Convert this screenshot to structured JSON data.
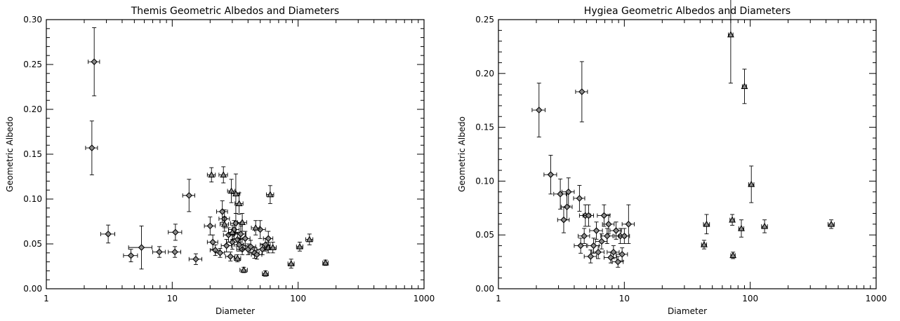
{
  "chart_data": [
    {
      "type": "scatter",
      "title": "Themis Geometric Albedos and Diameters",
      "xlabel": "Diameter",
      "ylabel": "Geometric Albedo",
      "xscale": "log",
      "xlim": [
        1,
        1000
      ],
      "ylim": [
        0,
        0.3
      ],
      "xticks": [
        1,
        10,
        100,
        1000
      ],
      "xtick_labels": [
        "1",
        "10",
        "100",
        "1000"
      ],
      "yticks": [
        0,
        0.05,
        0.1,
        0.15,
        0.2,
        0.25,
        0.3
      ],
      "ytick_labels": [
        "0.00",
        "0.05",
        "0.10",
        "0.15",
        "0.20",
        "0.25",
        "0.30"
      ],
      "grid": false,
      "series": [
        {
          "marker": "diamond",
          "points": [
            {
              "x": 2.4,
              "y": 0.253,
              "xerr": 0.25,
              "yerr": 0.038
            },
            {
              "x": 2.3,
              "y": 0.157,
              "xerr": 0.25,
              "yerr": 0.03
            },
            {
              "x": 3.1,
              "y": 0.061,
              "xerr": 0.4,
              "yerr": 0.01
            },
            {
              "x": 4.7,
              "y": 0.037,
              "xerr": 0.6,
              "yerr": 0.007
            },
            {
              "x": 5.7,
              "y": 0.046,
              "xerr": 1.2,
              "yerr": 0.024
            },
            {
              "x": 7.9,
              "y": 0.041,
              "xerr": 0.9,
              "yerr": 0.006
            },
            {
              "x": 10.5,
              "y": 0.041,
              "xerr": 1.2,
              "yerr": 0.006
            },
            {
              "x": 10.6,
              "y": 0.063,
              "xerr": 1.3,
              "yerr": 0.009
            },
            {
              "x": 13.6,
              "y": 0.104,
              "xerr": 1.5,
              "yerr": 0.018
            },
            {
              "x": 15.4,
              "y": 0.033,
              "xerr": 1.8,
              "yerr": 0.006
            },
            {
              "x": 20.0,
              "y": 0.07,
              "xerr": 2.0,
              "yerr": 0.01
            },
            {
              "x": 21.0,
              "y": 0.052,
              "xerr": 2.0,
              "yerr": 0.008
            },
            {
              "x": 22.0,
              "y": 0.043,
              "xerr": 2.0,
              "yerr": 0.006
            },
            {
              "x": 24.0,
              "y": 0.04,
              "xerr": 2.0,
              "yerr": 0.005
            },
            {
              "x": 25.0,
              "y": 0.086,
              "xerr": 2.5,
              "yerr": 0.012
            },
            {
              "x": 26.0,
              "y": 0.078,
              "xerr": 2.5,
              "yerr": 0.01
            },
            {
              "x": 27.0,
              "y": 0.048,
              "xerr": 2.5,
              "yerr": 0.007
            },
            {
              "x": 28.0,
              "y": 0.06,
              "xerr": 2.5,
              "yerr": 0.008
            },
            {
              "x": 29.0,
              "y": 0.036,
              "xerr": 2.5,
              "yerr": 0.005
            },
            {
              "x": 30.0,
              "y": 0.052,
              "xerr": 3.0,
              "yerr": 0.008
            },
            {
              "x": 31.0,
              "y": 0.066,
              "xerr": 3.0,
              "yerr": 0.01
            },
            {
              "x": 32.0,
              "y": 0.073,
              "xerr": 3.0,
              "yerr": 0.011
            },
            {
              "x": 33.0,
              "y": 0.055,
              "xerr": 3.0,
              "yerr": 0.008
            },
            {
              "x": 34.0,
              "y": 0.049,
              "xerr": 3.0,
              "yerr": 0.007
            },
            {
              "x": 35.0,
              "y": 0.061,
              "xerr": 3.5,
              "yerr": 0.009
            },
            {
              "x": 36.0,
              "y": 0.044,
              "xerr": 3.5,
              "yerr": 0.006
            },
            {
              "x": 38.0,
              "y": 0.056,
              "xerr": 3.5,
              "yerr": 0.008
            },
            {
              "x": 40.0,
              "y": 0.044,
              "xerr": 4.0,
              "yerr": 0.006
            },
            {
              "x": 42.0,
              "y": 0.047,
              "xerr": 4.0,
              "yerr": 0.007
            },
            {
              "x": 45.0,
              "y": 0.04,
              "xerr": 4.0,
              "yerr": 0.006
            },
            {
              "x": 47.0,
              "y": 0.038,
              "xerr": 4.5,
              "yerr": 0.005
            },
            {
              "x": 50.0,
              "y": 0.066,
              "xerr": 5.0,
              "yerr": 0.01
            },
            {
              "x": 52.0,
              "y": 0.044,
              "xerr": 5.0,
              "yerr": 0.006
            },
            {
              "x": 55.0,
              "y": 0.049,
              "xerr": 5.0,
              "yerr": 0.007
            },
            {
              "x": 58.0,
              "y": 0.056,
              "xerr": 5.0,
              "yerr": 0.008
            }
          ]
        },
        {
          "marker": "triangle",
          "points": [
            {
              "x": 20.5,
              "y": 0.127,
              "xerr": 1.5,
              "yerr": 0.008
            },
            {
              "x": 25.5,
              "y": 0.127,
              "xerr": 2.0,
              "yerr": 0.009
            },
            {
              "x": 29.5,
              "y": 0.109,
              "xerr": 2.0,
              "yerr": 0.013
            },
            {
              "x": 32.0,
              "y": 0.106,
              "xerr": 2.5,
              "yerr": 0.022
            },
            {
              "x": 34.0,
              "y": 0.095,
              "xerr": 2.5,
              "yerr": 0.012
            },
            {
              "x": 26.0,
              "y": 0.072,
              "xerr": 2.0,
              "yerr": 0.008
            },
            {
              "x": 30.0,
              "y": 0.063,
              "xerr": 2.0,
              "yerr": 0.008
            },
            {
              "x": 33.0,
              "y": 0.034,
              "xerr": 2.0,
              "yerr": 0.004
            },
            {
              "x": 36.0,
              "y": 0.074,
              "xerr": 3.0,
              "yerr": 0.01
            },
            {
              "x": 37.0,
              "y": 0.021,
              "xerr": 2.5,
              "yerr": 0.003
            },
            {
              "x": 46.0,
              "y": 0.068,
              "xerr": 3.5,
              "yerr": 0.008
            },
            {
              "x": 55.0,
              "y": 0.017,
              "xerr": 3.0,
              "yerr": 0.003
            },
            {
              "x": 58.0,
              "y": 0.046,
              "xerr": 4.0,
              "yerr": 0.006
            },
            {
              "x": 60.0,
              "y": 0.105,
              "xerr": 4.0,
              "yerr": 0.01
            },
            {
              "x": 63.0,
              "y": 0.046,
              "xerr": 4.0,
              "yerr": 0.006
            },
            {
              "x": 88.0,
              "y": 0.028,
              "xerr": 5.0,
              "yerr": 0.005
            },
            {
              "x": 103.0,
              "y": 0.047,
              "xerr": 6.0,
              "yerr": 0.005
            },
            {
              "x": 123.0,
              "y": 0.055,
              "xerr": 8.0,
              "yerr": 0.006
            },
            {
              "x": 165.0,
              "y": 0.029,
              "xerr": 8.0,
              "yerr": 0.003
            }
          ]
        }
      ]
    },
    {
      "type": "scatter",
      "title": "Hygiea Geometric Albedos and Diameters",
      "xlabel": "Diameter",
      "ylabel": "Geometric Albedo",
      "xscale": "log",
      "xlim": [
        1,
        1000
      ],
      "ylim": [
        0,
        0.25
      ],
      "xticks": [
        1,
        10,
        100,
        1000
      ],
      "xtick_labels": [
        "1",
        "10",
        "100",
        "1000"
      ],
      "yticks": [
        0,
        0.05,
        0.1,
        0.15,
        0.2,
        0.25
      ],
      "ytick_labels": [
        "0.00",
        "0.05",
        "0.10",
        "0.15",
        "0.20",
        "0.25"
      ],
      "grid": false,
      "series": [
        {
          "marker": "diamond",
          "points": [
            {
              "x": 2.1,
              "y": 0.166,
              "xerr": 0.25,
              "yerr": 0.025
            },
            {
              "x": 4.6,
              "y": 0.183,
              "xerr": 0.5,
              "yerr": 0.028
            },
            {
              "x": 2.6,
              "y": 0.106,
              "xerr": 0.3,
              "yerr": 0.018
            },
            {
              "x": 3.1,
              "y": 0.088,
              "xerr": 0.35,
              "yerr": 0.014
            },
            {
              "x": 3.6,
              "y": 0.09,
              "xerr": 0.4,
              "yerr": 0.013
            },
            {
              "x": 3.5,
              "y": 0.076,
              "xerr": 0.35,
              "yerr": 0.012
            },
            {
              "x": 3.3,
              "y": 0.064,
              "xerr": 0.35,
              "yerr": 0.012
            },
            {
              "x": 4.4,
              "y": 0.084,
              "xerr": 0.45,
              "yerr": 0.012
            },
            {
              "x": 4.5,
              "y": 0.04,
              "xerr": 0.5,
              "yerr": 0.007
            },
            {
              "x": 4.9,
              "y": 0.068,
              "xerr": 0.5,
              "yerr": 0.01
            },
            {
              "x": 5.2,
              "y": 0.068,
              "xerr": 0.5,
              "yerr": 0.01
            },
            {
              "x": 4.8,
              "y": 0.049,
              "xerr": 0.5,
              "yerr": 0.007
            },
            {
              "x": 5.4,
              "y": 0.03,
              "xerr": 0.6,
              "yerr": 0.006
            },
            {
              "x": 5.7,
              "y": 0.04,
              "xerr": 0.6,
              "yerr": 0.007
            },
            {
              "x": 6.0,
              "y": 0.054,
              "xerr": 0.7,
              "yerr": 0.008
            },
            {
              "x": 6.2,
              "y": 0.034,
              "xerr": 0.7,
              "yerr": 0.006
            },
            {
              "x": 6.6,
              "y": 0.044,
              "xerr": 0.7,
              "yerr": 0.007
            },
            {
              "x": 6.9,
              "y": 0.068,
              "xerr": 0.8,
              "yerr": 0.01
            },
            {
              "x": 7.3,
              "y": 0.049,
              "xerr": 0.8,
              "yerr": 0.007
            },
            {
              "x": 7.5,
              "y": 0.06,
              "xerr": 0.8,
              "yerr": 0.009
            },
            {
              "x": 7.8,
              "y": 0.029,
              "xerr": 0.9,
              "yerr": 0.005
            },
            {
              "x": 8.2,
              "y": 0.034,
              "xerr": 0.9,
              "yerr": 0.006
            },
            {
              "x": 8.6,
              "y": 0.054,
              "xerr": 0.9,
              "yerr": 0.008
            },
            {
              "x": 8.9,
              "y": 0.025,
              "xerr": 0.9,
              "yerr": 0.005
            },
            {
              "x": 9.3,
              "y": 0.049,
              "xerr": 1.0,
              "yerr": 0.007
            },
            {
              "x": 9.6,
              "y": 0.032,
              "xerr": 1.0,
              "yerr": 0.006
            },
            {
              "x": 10.0,
              "y": 0.049,
              "xerr": 1.0,
              "yerr": 0.007
            },
            {
              "x": 10.8,
              "y": 0.06,
              "xerr": 1.2,
              "yerr": 0.018
            }
          ]
        },
        {
          "marker": "triangle",
          "points": [
            {
              "x": 43.0,
              "y": 0.041,
              "xerr": 2.0,
              "yerr": 0.004
            },
            {
              "x": 45.0,
              "y": 0.06,
              "xerr": 2.5,
              "yerr": 0.009
            },
            {
              "x": 70.0,
              "y": 0.236,
              "xerr": 3.0,
              "yerr": 0.045
            },
            {
              "x": 72.0,
              "y": 0.064,
              "xerr": 3.0,
              "yerr": 0.005
            },
            {
              "x": 73.0,
              "y": 0.031,
              "xerr": 3.0,
              "yerr": 0.003
            },
            {
              "x": 85.0,
              "y": 0.056,
              "xerr": 4.0,
              "yerr": 0.008
            },
            {
              "x": 90.0,
              "y": 0.188,
              "xerr": 3.5,
              "yerr": 0.016
            },
            {
              "x": 102.0,
              "y": 0.097,
              "xerr": 5.0,
              "yerr": 0.017
            },
            {
              "x": 130.0,
              "y": 0.058,
              "xerr": 7.0,
              "yerr": 0.006
            },
            {
              "x": 440.0,
              "y": 0.06,
              "xerr": 25.0,
              "yerr": 0.004
            }
          ]
        }
      ]
    }
  ]
}
